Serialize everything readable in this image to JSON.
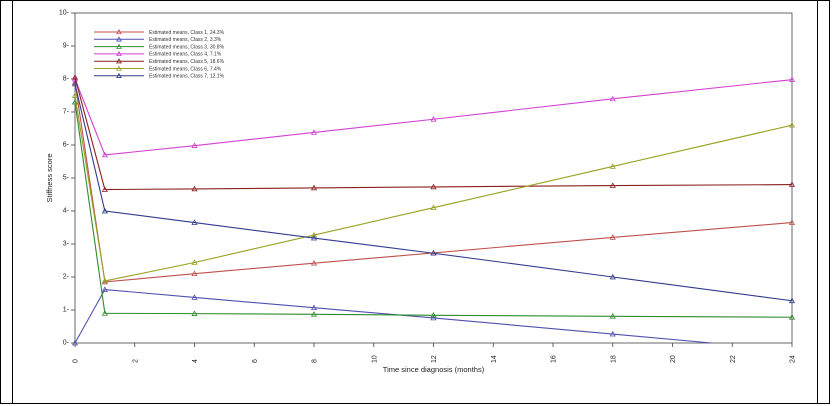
{
  "chart_data": {
    "type": "line",
    "xlabel": "Time since diagnosis (months)",
    "ylabel": "Stiffness score",
    "xlim": [
      0,
      24
    ],
    "ylim": [
      0,
      10
    ],
    "x_ticks": [
      "0",
      "2",
      "4",
      "6",
      "8",
      "10",
      "12",
      "14",
      "16",
      "18",
      "20",
      "22",
      "24"
    ],
    "y_ticks": [
      "0",
      "1",
      "2",
      "3",
      "4",
      "5",
      "6",
      "7",
      "8",
      "9",
      "10"
    ],
    "grid": false,
    "legend_position": "top-left",
    "series": [
      {
        "name": "Estimated means, Class 1, 24.3%",
        "color": "#c0504d",
        "points": [
          [
            0,
            7.9
          ],
          [
            1,
            1.85
          ],
          [
            4,
            2.1
          ],
          [
            8,
            2.42
          ],
          [
            12,
            2.73
          ],
          [
            18,
            3.2
          ],
          [
            24,
            3.65
          ]
        ]
      },
      {
        "name": "Estimated means, Class 2, 3.3%",
        "color": "#4f4fb0",
        "points": [
          [
            0,
            0
          ],
          [
            1,
            1.62
          ],
          [
            4,
            1.38
          ],
          [
            8,
            1.07
          ],
          [
            12,
            0.76
          ],
          [
            18,
            0.27
          ],
          [
            21.3,
            0
          ]
        ]
      },
      {
        "name": "Estimated means, Class 3, 30.8%",
        "color": "#2e8b2e",
        "points": [
          [
            0,
            7.3
          ],
          [
            1,
            0.9
          ],
          [
            4,
            0.89
          ],
          [
            8,
            0.87
          ],
          [
            12,
            0.84
          ],
          [
            18,
            0.81
          ],
          [
            24,
            0.78
          ]
        ]
      },
      {
        "name": "Estimated means, Class 4, 7.1%",
        "color": "#d040d0",
        "points": [
          [
            0,
            8.0
          ],
          [
            1,
            5.7
          ],
          [
            4,
            5.98
          ],
          [
            8,
            6.38
          ],
          [
            12,
            6.78
          ],
          [
            18,
            7.4
          ],
          [
            24,
            7.98
          ]
        ]
      },
      {
        "name": "Estimated means, Class 5, 18.6%",
        "color": "#8b2020",
        "points": [
          [
            0,
            8.05
          ],
          [
            1,
            4.65
          ],
          [
            4,
            4.67
          ],
          [
            8,
            4.7
          ],
          [
            12,
            4.73
          ],
          [
            18,
            4.77
          ],
          [
            24,
            4.8
          ]
        ]
      },
      {
        "name": "Estimated means, Class 6, 7.4%",
        "color": "#9aa020",
        "points": [
          [
            0,
            7.5
          ],
          [
            1,
            1.88
          ],
          [
            4,
            2.44
          ],
          [
            8,
            3.27
          ],
          [
            12,
            4.1
          ],
          [
            18,
            5.35
          ],
          [
            24,
            6.6
          ]
        ]
      },
      {
        "name": "Estimated means, Class 7, 12.1%",
        "color": "#303c8c",
        "points": [
          [
            0,
            7.85
          ],
          [
            1,
            4.0
          ],
          [
            4,
            3.65
          ],
          [
            8,
            3.18
          ],
          [
            12,
            2.72
          ],
          [
            18,
            2.0
          ],
          [
            24,
            1.28
          ]
        ]
      }
    ]
  }
}
